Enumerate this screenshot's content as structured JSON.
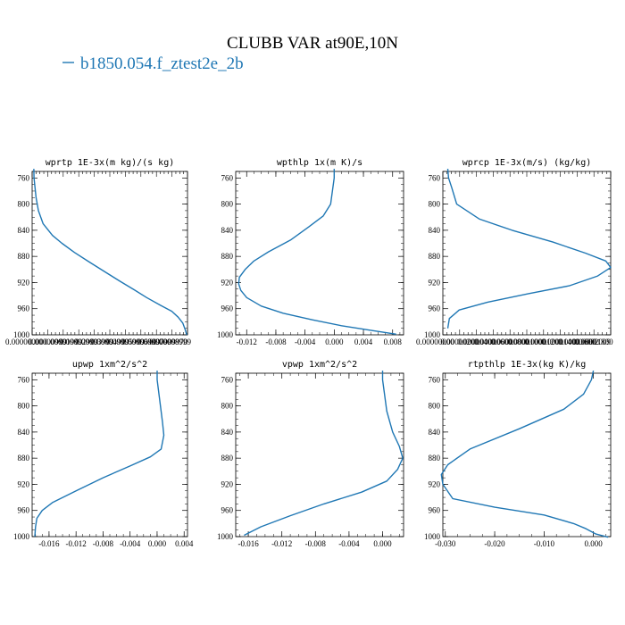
{
  "figure": {
    "title": "CLUBB VAR at90E,10N",
    "legend_label": "b1850.054.f_ztest2e_2b",
    "line_color": "#1f77b4"
  },
  "chart_data": [
    {
      "type": "line",
      "title": "wprtp  1E-3x(m kg)/(s kg)",
      "ylim": [
        1000,
        750
      ],
      "yticks": [
        760,
        800,
        840,
        880,
        920,
        960,
        1000
      ],
      "xlim": [
        -1e-06,
        9.8e-05
      ],
      "xticks": [],
      "xtick_labels": [
        "0.00000000",
        "0.00000999",
        "0.00001999",
        "0.00002999",
        "0.00003999",
        "0.00004999",
        "0.00005999",
        "0.00006999",
        "0.00007999",
        "0.00008999",
        "0.00009970"
      ],
      "series": [
        {
          "x": [
            1e-07,
            2e-07,
            1.5e-06,
            3e-06,
            6e-06,
            1.2e-05,
            1.8e-05,
            2.6e-05,
            3.5e-05,
            4.5e-05,
            5.5e-05,
            6.4e-05,
            7.2e-05,
            8.1e-05,
            8.8e-05,
            9.2e-05,
            9.5e-05,
            9.65e-05,
            9.75e-05
          ],
          "y": [
            746,
            760,
            790,
            810,
            830,
            848,
            860,
            874,
            888,
            903,
            918,
            931,
            943,
            955,
            964,
            973,
            982,
            992,
            1000
          ]
        }
      ]
    },
    {
      "type": "line",
      "title": "wpthlp  1x(m K)/s",
      "ylim": [
        1000,
        750
      ],
      "yticks": [
        760,
        800,
        840,
        880,
        920,
        960,
        1000
      ],
      "xlim": [
        -0.0135,
        0.0095
      ],
      "xticks": [
        -0.012,
        -0.008,
        -0.004,
        0.0,
        0.004,
        0.008
      ],
      "xtick_labels": [
        "-0.012",
        "-0.008",
        "-0.004",
        "0.000",
        "0.004",
        "0.008"
      ],
      "series": [
        {
          "x": [
            0.0,
            0.0,
            -0.0005,
            -0.0015,
            -0.0035,
            -0.006,
            -0.009,
            -0.011,
            -0.0122,
            -0.013,
            -0.0131,
            -0.0128,
            -0.012,
            -0.01,
            -0.007,
            -0.003,
            0.001,
            0.005,
            0.0085
          ],
          "y": [
            746,
            760,
            800,
            818,
            835,
            855,
            873,
            887,
            900,
            912,
            922,
            932,
            943,
            956,
            967,
            977,
            986,
            993,
            999
          ]
        }
      ]
    },
    {
      "type": "line",
      "title": "wprcp  1E-3x(m/s) (kg/kg)",
      "ylim": [
        1000,
        750
      ],
      "yticks": [
        760,
        800,
        840,
        880,
        920,
        960,
        1000
      ],
      "xlim": [
        -5e-07,
        2.01e-05
      ],
      "xticks": [],
      "xtick_labels": [
        "0.00000000",
        "0.00000200",
        "0.00000400",
        "0.00000600",
        "0.00000800",
        "0.00001000",
        "0.00001200",
        "0.00001400",
        "0.00001600",
        "0.00001800",
        "0.00002009"
      ],
      "series": [
        {
          "x": [
            1e-07,
            2e-07,
            6e-07,
            1.2e-06,
            4e-06,
            8e-06,
            1.3e-05,
            1.7e-05,
            1.95e-05,
            2.01e-05,
            1.85e-05,
            1.5e-05,
            1e-05,
            5e-06,
            1.5e-06,
            3e-07,
            1e-07
          ],
          "y": [
            746,
            760,
            775,
            800,
            823,
            840,
            858,
            875,
            887,
            897,
            910,
            925,
            937,
            950,
            962,
            975,
            990
          ]
        }
      ]
    },
    {
      "type": "line",
      "title": "upwp  1xm^2/s^2",
      "ylim": [
        1000,
        750
      ],
      "yticks": [
        760,
        800,
        840,
        880,
        920,
        960,
        1000
      ],
      "xlim": [
        -0.0185,
        0.0045
      ],
      "xticks": [
        -0.016,
        -0.012,
        -0.008,
        -0.004,
        0.0,
        0.004
      ],
      "xtick_labels": [
        "-0.016",
        "-0.012",
        "-0.008",
        "-0.004",
        "0.000",
        "0.004"
      ],
      "series": [
        {
          "x": [
            0.0,
            0.0,
            0.0005,
            0.0008,
            0.001,
            0.0006,
            -0.001,
            -0.004,
            -0.008,
            -0.012,
            -0.0155,
            -0.017,
            -0.0178,
            -0.018,
            -0.0181
          ],
          "y": [
            746,
            760,
            800,
            825,
            845,
            866,
            878,
            892,
            910,
            930,
            948,
            960,
            972,
            985,
            1000
          ]
        }
      ]
    },
    {
      "type": "line",
      "title": "vpwp  1xm^2/s^2",
      "ylim": [
        1000,
        750
      ],
      "yticks": [
        760,
        800,
        840,
        880,
        920,
        960,
        1000
      ],
      "xlim": [
        -0.0175,
        0.0025
      ],
      "xticks": [
        -0.016,
        -0.012,
        -0.008,
        -0.004,
        0.0
      ],
      "xtick_labels": [
        "-0.016",
        "-0.012",
        "-0.008",
        "-0.004",
        "0.000"
      ],
      "series": [
        {
          "x": [
            0.0,
            0.0,
            0.0005,
            0.0012,
            0.002,
            0.0024,
            0.0018,
            0.0005,
            -0.0025,
            -0.007,
            -0.011,
            -0.0145,
            -0.0165
          ],
          "y": [
            746,
            760,
            808,
            840,
            862,
            880,
            897,
            915,
            932,
            950,
            968,
            985,
            998
          ]
        }
      ]
    },
    {
      "type": "line",
      "title": "rtpthlp  1E-3x(kg K)/kg",
      "ylim": [
        1000,
        750
      ],
      "yticks": [
        760,
        800,
        840,
        880,
        920,
        960,
        1000
      ],
      "xlim": [
        -0.0305,
        0.0035
      ],
      "xticks": [
        -0.03,
        -0.02,
        -0.01,
        0.0
      ],
      "xtick_labels": [
        "-0.030",
        "-0.020",
        "-0.010",
        "0.000"
      ],
      "series": [
        {
          "x": [
            0.0,
            -0.0004,
            -0.002,
            -0.006,
            -0.015,
            -0.025,
            -0.0295,
            -0.0308,
            -0.0305,
            -0.0285,
            -0.02,
            -0.01,
            -0.004,
            -0.0015,
            0.0005,
            0.003
          ],
          "y": [
            746,
            760,
            782,
            805,
            835,
            866,
            890,
            905,
            920,
            942,
            955,
            967,
            980,
            988,
            996,
            1001
          ]
        }
      ]
    }
  ]
}
